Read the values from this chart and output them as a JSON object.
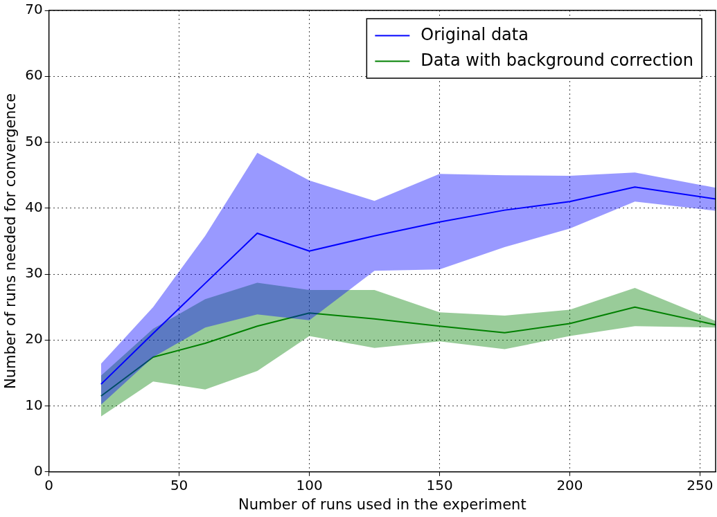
{
  "chart_data": {
    "type": "line",
    "xlabel": "Number of runs used in the experiment",
    "ylabel": "Number of runs needed for convergence",
    "x": [
      20,
      40,
      60,
      80,
      100,
      125,
      150,
      175,
      200,
      225,
      256
    ],
    "series": [
      {
        "name": "Original data",
        "color": "#0000ff",
        "values": [
          13.3,
          21,
          28.6,
          36.2,
          33.5,
          35.8,
          37.9,
          39.7,
          41,
          43.2,
          41.4
        ],
        "lower": [
          10.2,
          17.4,
          21.9,
          23.9,
          23,
          30.5,
          30.7,
          34.1,
          36.9,
          41,
          39.6
        ],
        "upper": [
          16.4,
          25,
          35.8,
          48.4,
          44.2,
          41.1,
          45.2,
          45,
          44.9,
          45.4,
          43.1
        ]
      },
      {
        "name": "Data with background correction",
        "color": "#008000",
        "values": [
          11.5,
          17.4,
          19.5,
          22.1,
          24.1,
          23.2,
          22.1,
          21.1,
          22.5,
          25,
          22.3
        ],
        "lower": [
          8.4,
          13.7,
          12.5,
          15.3,
          20.6,
          18.8,
          19.8,
          18.6,
          20.6,
          22.1,
          21.9
        ],
        "upper": [
          14.6,
          21.7,
          26.2,
          28.7,
          27.6,
          27.6,
          24.2,
          23.7,
          24.6,
          27.9,
          22.9
        ]
      }
    ],
    "xlim": [
      0,
      256
    ],
    "xticks": [
      0,
      50,
      100,
      150,
      200,
      250
    ],
    "ylim": [
      0,
      70
    ],
    "yticks": [
      0,
      10,
      20,
      30,
      40,
      50,
      60,
      70
    ],
    "grid": true,
    "legend": "top right",
    "line_style": "solid",
    "marker": "none"
  }
}
